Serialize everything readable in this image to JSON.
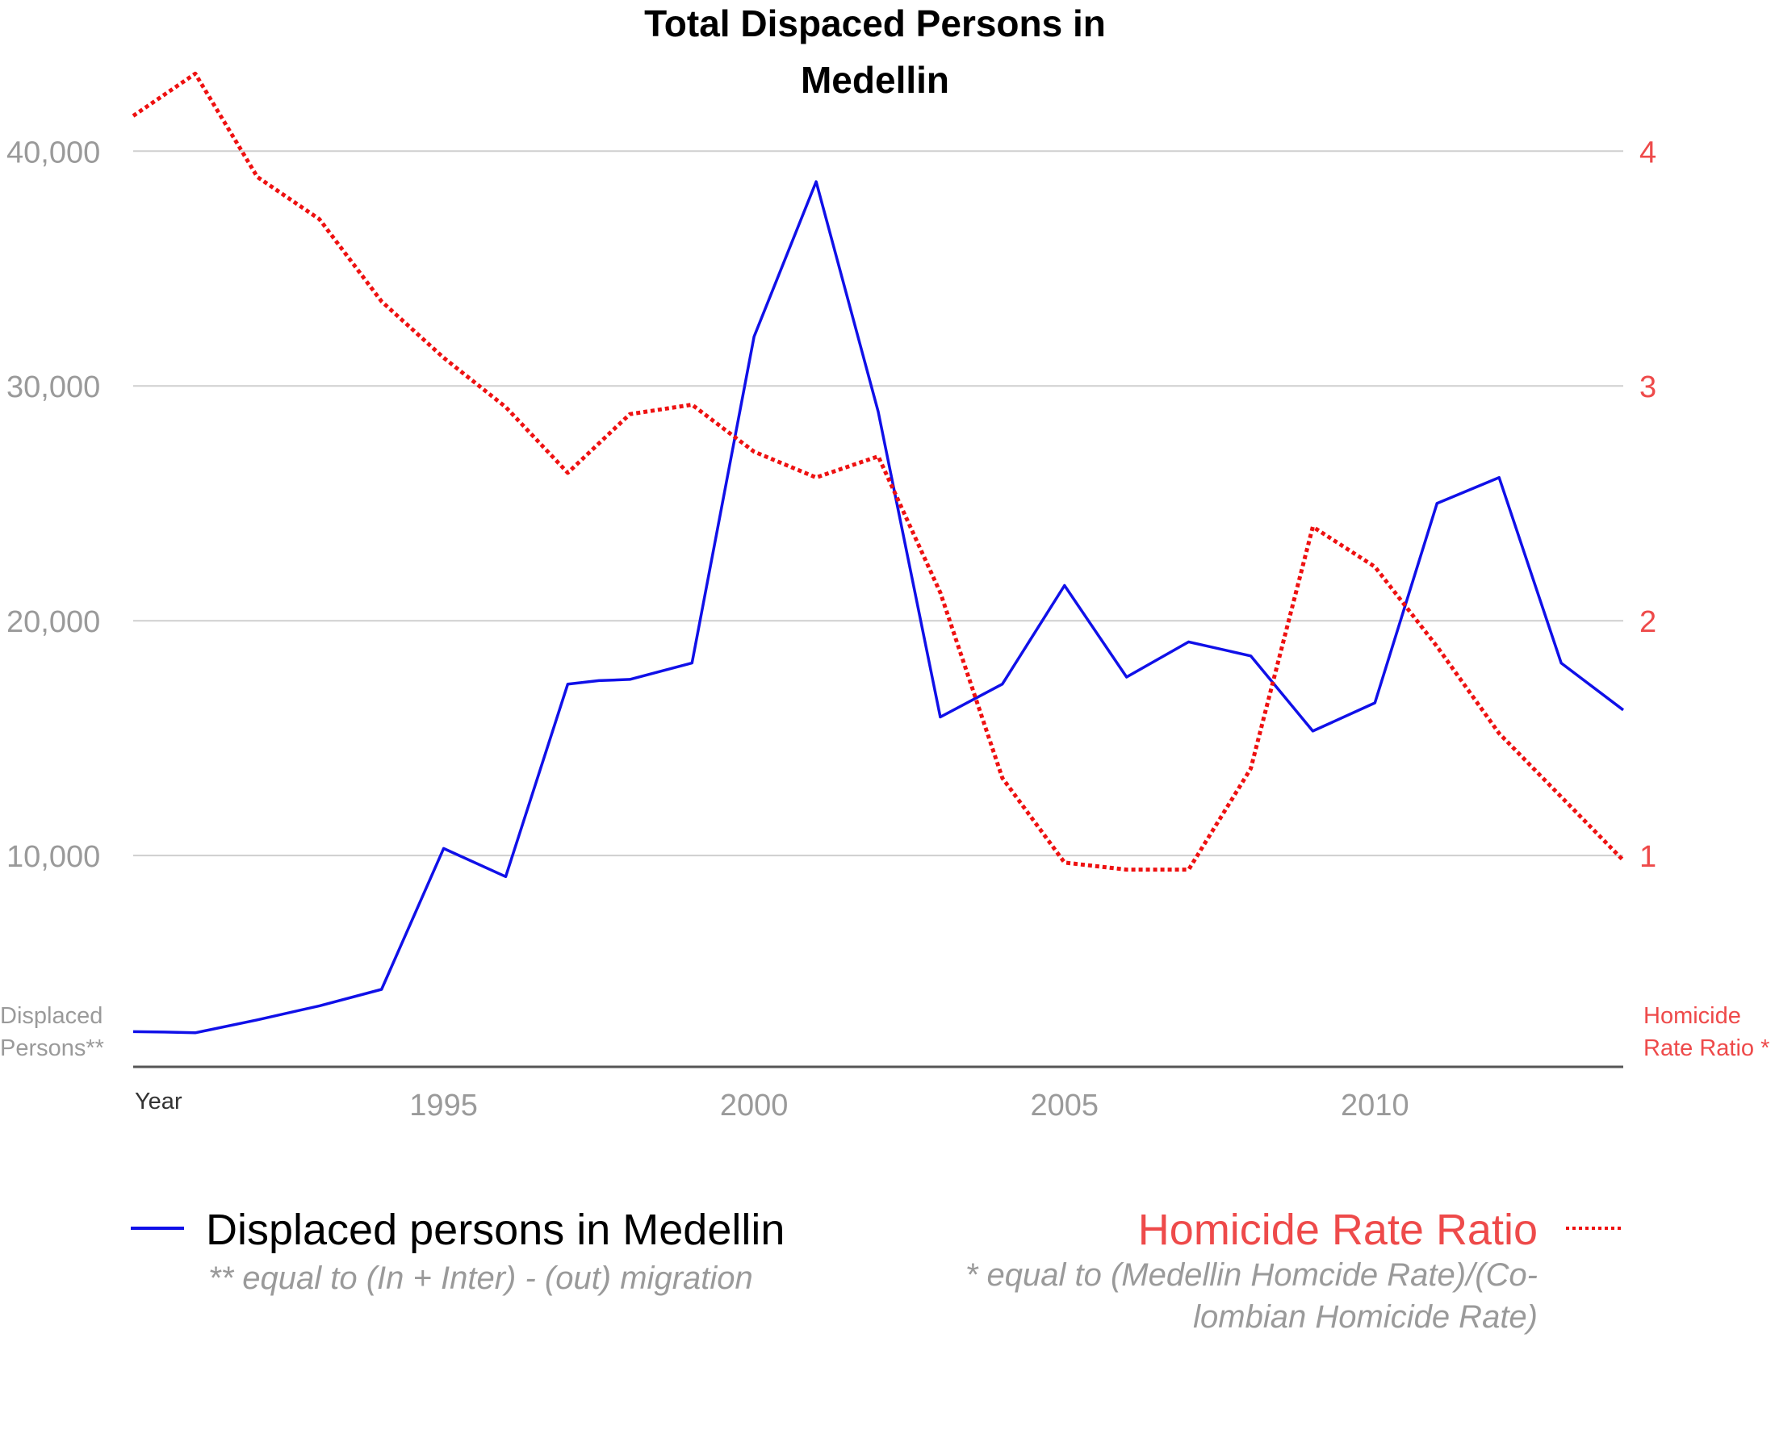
{
  "chart_data": {
    "type": "line",
    "title": [
      "Total Dispaced Persons in",
      "Medellin"
    ],
    "x": [
      1991,
      1992,
      1993,
      1994,
      1995,
      1996,
      1997,
      1998,
      1999,
      2000,
      2001,
      2002,
      2003,
      2004,
      2005,
      2006,
      2007,
      2008,
      2009,
      2010,
      2011,
      2012,
      2013,
      2014
    ],
    "xlim": [
      1990,
      2014
    ],
    "x_ticks": [
      1995,
      2000,
      2005,
      2010
    ],
    "xlabel": "Year",
    "grid": true,
    "y_left": {
      "ylabel": [
        "Displaced",
        "Persons**"
      ],
      "ylim": [
        1000,
        43000
      ],
      "ticks": [
        10000,
        20000,
        30000,
        40000
      ],
      "tick_labels": [
        "10,000",
        "20,000",
        "30,000",
        "40,000"
      ]
    },
    "y_right": {
      "ylabel": [
        "Homicide",
        "Rate Ratio *"
      ],
      "ylim": [
        0.1,
        4.3
      ],
      "ticks": [
        1,
        2,
        3,
        4
      ],
      "tick_labels": [
        "1",
        "2",
        "3",
        "4"
      ]
    },
    "series": [
      {
        "name": "Displaced persons in Medellin",
        "note": "** equal to (In + Inter) - (out) migration",
        "axis": "left",
        "color": "#1010e8",
        "style": "solid",
        "x": [
          1990,
          1990.5,
          1991,
          1992,
          1993,
          1994,
          1995,
          1996,
          1997,
          1997.5,
          1998,
          1999,
          2000,
          2001,
          2002,
          2003,
          2004,
          2005,
          2006,
          2007,
          2008,
          2009,
          2010,
          2011,
          2012,
          2013,
          2014
        ],
        "values": [
          2500,
          2480,
          2450,
          3000,
          3600,
          4300,
          10300,
          9100,
          17300,
          17450,
          17500,
          18200,
          32100,
          38700,
          28900,
          15900,
          17300,
          21500,
          17600,
          19100,
          18500,
          15300,
          16500,
          25000,
          26100,
          18200,
          16200
        ]
      },
      {
        "name": "Homicide Rate Ratio",
        "note": [
          "* equal to (Medellin Homcide Rate)/(Co-",
          "lombian Homicide Rate)"
        ],
        "axis": "right",
        "color": "#ee1111",
        "style": "dotted",
        "x": [
          1990,
          1991,
          1992,
          1993,
          1994,
          1995,
          1996,
          1997,
          1998,
          1999,
          2000,
          2001,
          2002,
          2003,
          2004,
          2005,
          2006,
          2007,
          2008,
          2009,
          2010,
          2011,
          2012,
          2013,
          2014
        ],
        "values": [
          4.15,
          4.33,
          3.89,
          3.71,
          3.36,
          3.12,
          2.91,
          2.63,
          2.88,
          2.92,
          2.72,
          2.61,
          2.7,
          2.12,
          1.33,
          0.97,
          0.94,
          0.94,
          1.37,
          2.4,
          2.23,
          1.89,
          1.52,
          1.25,
          0.98
        ]
      }
    ],
    "legend": "bottom"
  }
}
